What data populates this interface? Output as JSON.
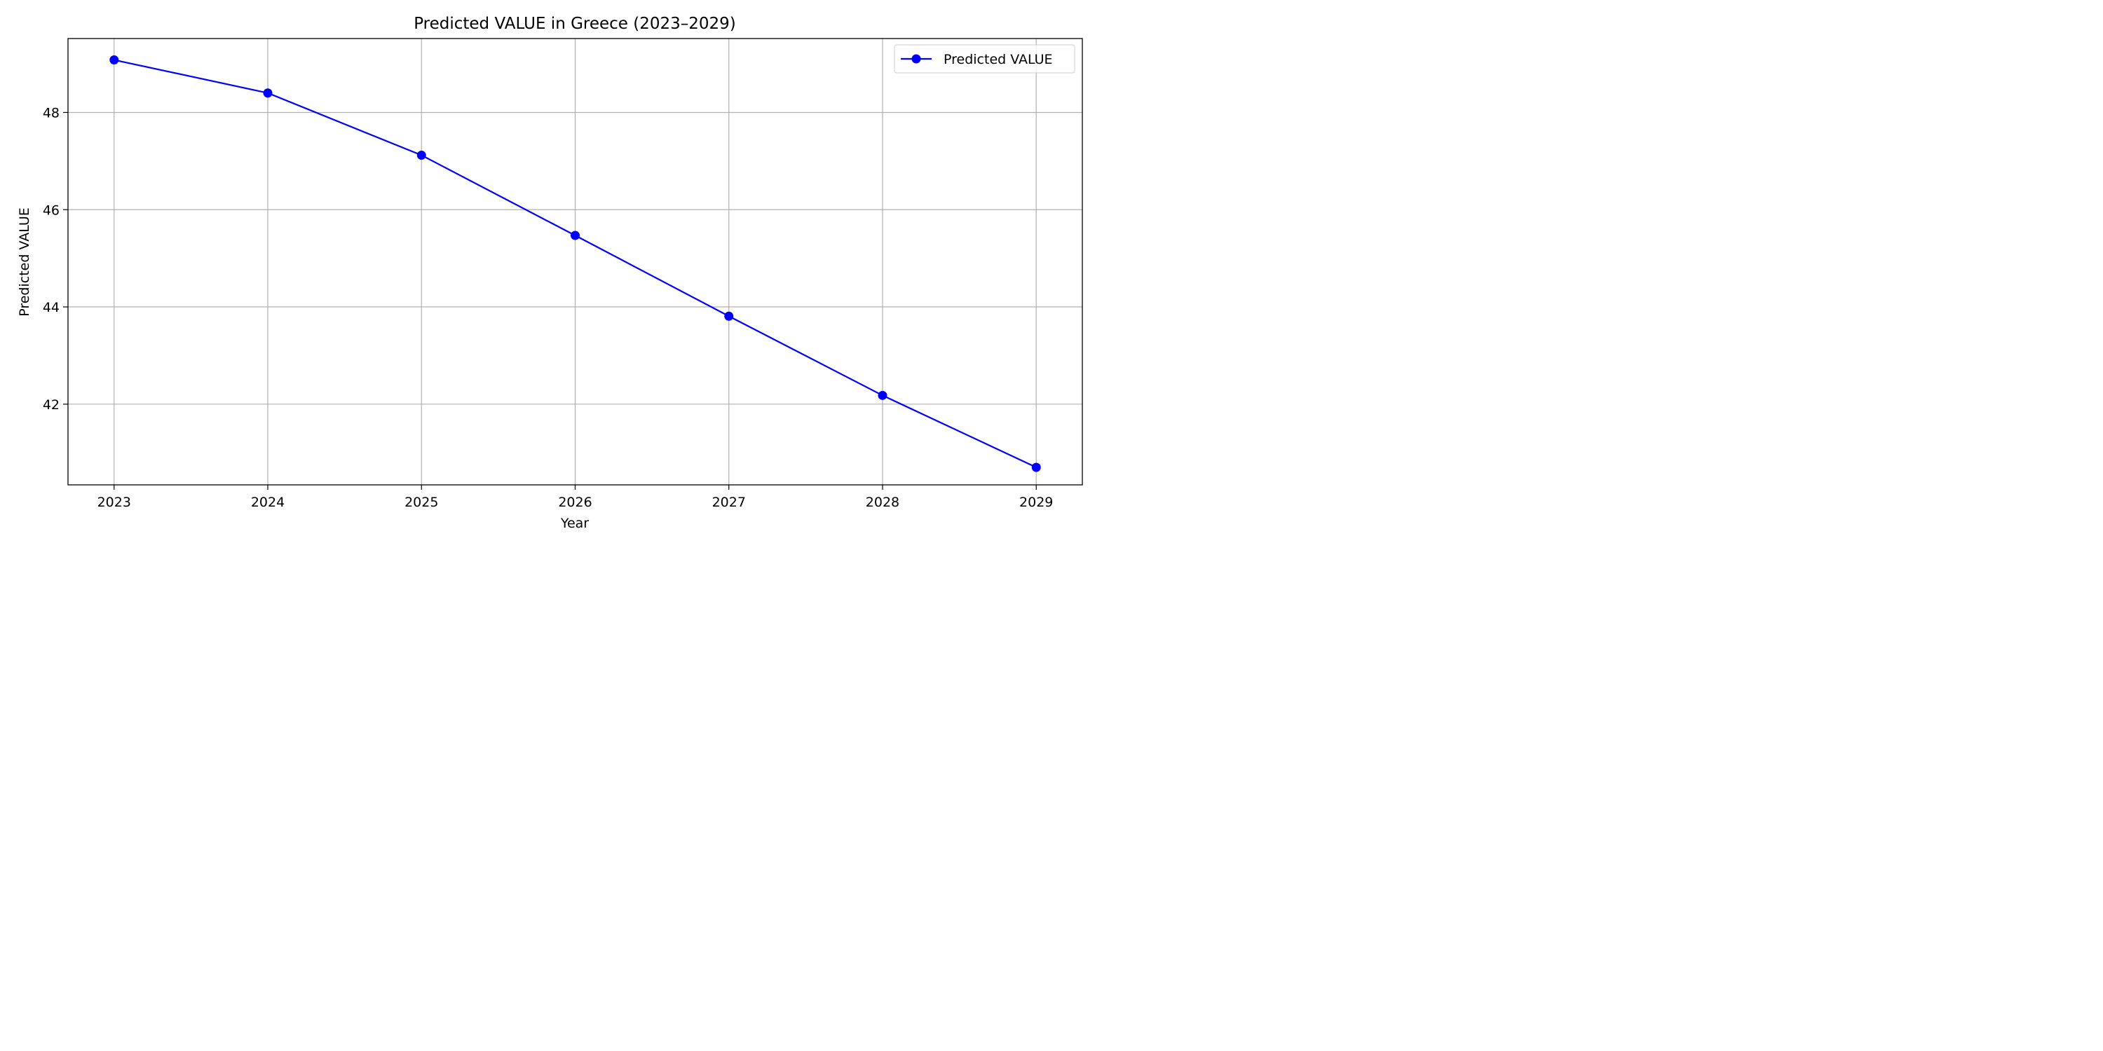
{
  "chart_data": {
    "type": "line",
    "title": "Predicted VALUE in Greece (2023–2029)",
    "xlabel": "Year",
    "ylabel": "Predicted VALUE",
    "x": [
      2023,
      2024,
      2025,
      2026,
      2027,
      2028,
      2029
    ],
    "x_tick_labels": [
      "2023",
      "2024",
      "2025",
      "2026",
      "2027",
      "2028",
      "2029"
    ],
    "y_ticks": [
      42,
      44,
      46,
      48
    ],
    "y_tick_labels": [
      "42",
      "44",
      "46",
      "48"
    ],
    "xlim": [
      2022.7,
      2029.3
    ],
    "ylim": [
      40.34,
      49.52
    ],
    "grid": true,
    "legend_position": "top-right",
    "series": [
      {
        "name": "Predicted VALUE",
        "color": "#0000ff",
        "marker": "circle",
        "values": [
          49.08,
          48.4,
          47.12,
          45.47,
          43.81,
          42.18,
          40.7
        ]
      }
    ]
  }
}
